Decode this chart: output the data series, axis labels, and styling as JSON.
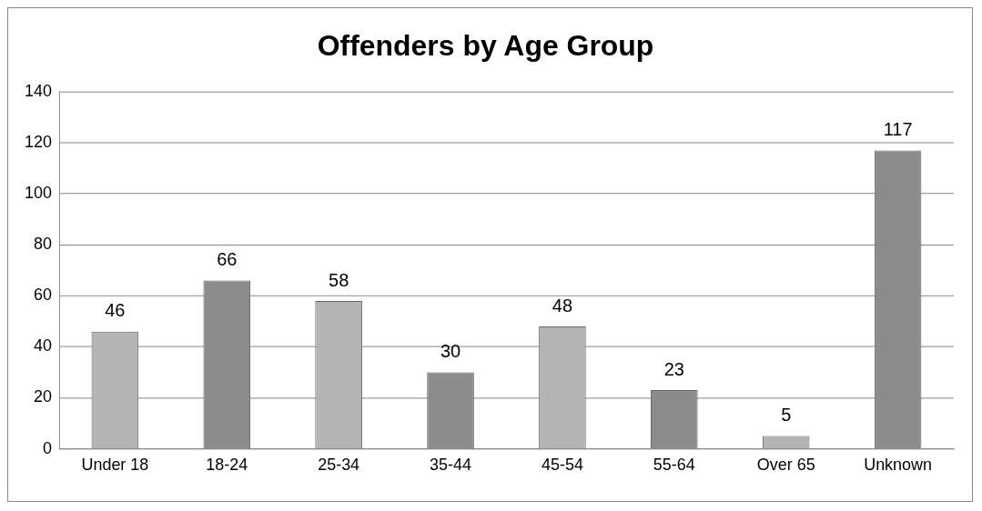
{
  "chart_data": {
    "type": "bar",
    "title": "Offenders by Age Group",
    "categories": [
      "Under 18",
      "18-24",
      "25-34",
      "35-44",
      "45-54",
      "55-64",
      "Over 65",
      "Unknown"
    ],
    "values": [
      46,
      66,
      58,
      30,
      48,
      23,
      5,
      117
    ],
    "colors": [
      "#b4b4b4",
      "#8c8c8c",
      "#b4b4b4",
      "#8c8c8c",
      "#b4b4b4",
      "#8c8c8c",
      "#b4b4b4",
      "#8c8c8c"
    ],
    "ylim": [
      0,
      140
    ],
    "yticks": [
      0,
      20,
      40,
      60,
      80,
      100,
      120,
      140
    ],
    "grid": "y",
    "legend": false,
    "data_labels": true
  }
}
